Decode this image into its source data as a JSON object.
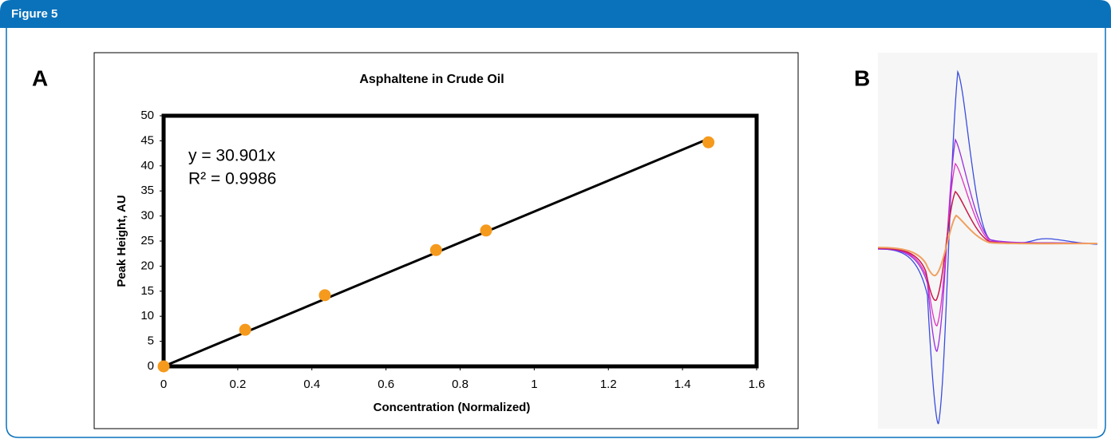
{
  "header": {
    "title": "Figure 5"
  },
  "panels": [
    "A",
    "B"
  ],
  "chart_data": {
    "type": "scatter",
    "title": "Asphaltene in Crude Oil",
    "x_label": "Concentration (Normalized)",
    "y_label": "Peak Height, AU",
    "annotations": [
      "y = 30.901x",
      "R² = 0.9986"
    ],
    "x": [
      0,
      0.22,
      0.435,
      0.735,
      0.87,
      1.47
    ],
    "values": [
      0,
      7.3,
      14.2,
      23.2,
      27.1,
      44.7
    ],
    "color": "#f59a1c",
    "trendline": {
      "x": [
        0,
        1.47
      ],
      "y": [
        0,
        45.4
      ],
      "color": "#000000"
    },
    "xlim": [
      0,
      1.6
    ],
    "xticks": [
      0,
      0.2,
      0.4,
      0.6,
      0.8,
      1,
      1.2,
      1.4,
      1.6
    ],
    "ylim": [
      0,
      50
    ],
    "yticks": [
      0,
      5,
      10,
      15,
      20,
      25,
      30,
      35,
      40,
      45,
      50
    ]
  }
}
